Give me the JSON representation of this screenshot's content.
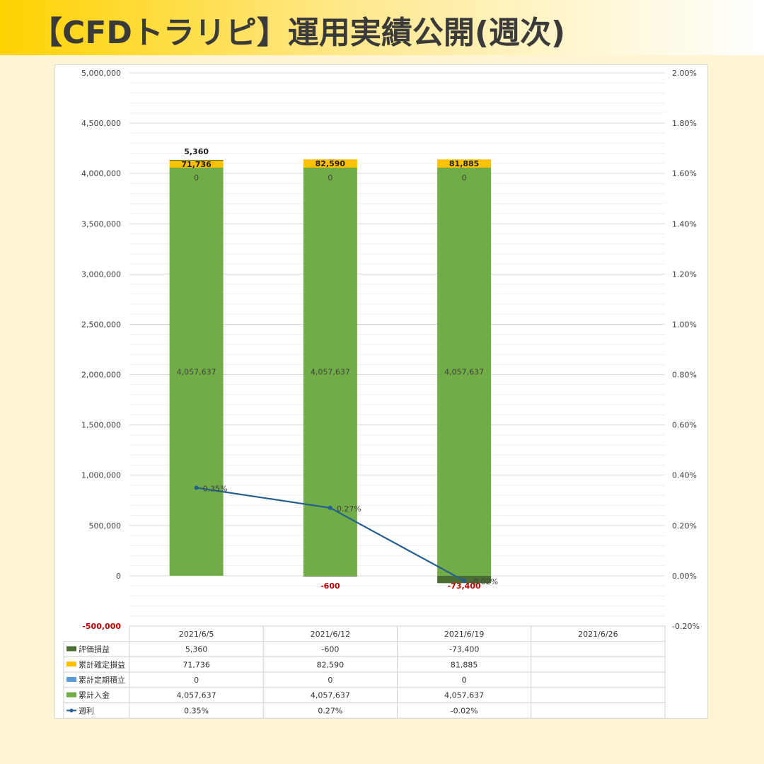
{
  "header": {
    "title": "【CFDトラリピ】運用実績公開(週次)"
  },
  "colors": {
    "banner_start": "#ffd200",
    "page_bg": "#fff5d3",
    "hyouka": "#4a6d31",
    "kakutei": "#ffc000",
    "teiki": "#5b9bd5",
    "nyukin": "#70ad47",
    "shuuri": "#255e91",
    "negative_axis": "#c00000"
  },
  "chart_data": {
    "type": "bar",
    "stacked": true,
    "categories": [
      "2021/6/5",
      "2021/6/12",
      "2021/6/19",
      "2021/6/26"
    ],
    "y_left": {
      "min": -500000,
      "max": 5000000,
      "major_step": 500000,
      "tick_labels": [
        "-500,000",
        "0",
        "500,000",
        "1,000,000",
        "1,500,000",
        "2,000,000",
        "2,500,000",
        "3,000,000",
        "3,500,000",
        "4,000,000",
        "4,500,000",
        "5,000,000"
      ]
    },
    "y_right": {
      "min": -0.2,
      "max": 2.0,
      "major_step": 0.2,
      "tick_labels": [
        "-0.20%",
        "0.00%",
        "0.20%",
        "0.40%",
        "0.60%",
        "0.80%",
        "1.00%",
        "1.20%",
        "1.40%",
        "1.60%",
        "1.80%",
        "2.00%"
      ]
    },
    "series": [
      {
        "key": "nyukin",
        "name": "累計入金",
        "type": "bar",
        "axis": "left",
        "values": [
          4057637,
          4057637,
          4057637,
          null
        ],
        "labels": [
          "4,057,637",
          "4,057,637",
          "4,057,637",
          ""
        ]
      },
      {
        "key": "teiki",
        "name": "累計定期積立",
        "type": "bar",
        "axis": "left",
        "values": [
          0,
          0,
          0,
          null
        ],
        "labels": [
          "0",
          "0",
          "0",
          ""
        ]
      },
      {
        "key": "kakutei",
        "name": "累計確定損益",
        "type": "bar",
        "axis": "left",
        "values": [
          71736,
          82590,
          81885,
          null
        ],
        "labels": [
          "71,736",
          "82,590",
          "81,885",
          ""
        ]
      },
      {
        "key": "hyouka",
        "name": "評価損益",
        "type": "bar",
        "axis": "left",
        "values": [
          5360,
          -600,
          -73400,
          null
        ],
        "labels": [
          "5,360",
          "-600",
          "-73,400",
          ""
        ]
      },
      {
        "key": "shuuri",
        "name": "週利",
        "type": "line",
        "axis": "right",
        "values": [
          0.35,
          0.27,
          -0.02,
          null
        ],
        "labels": [
          "0.35%",
          "0.27%",
          "-0.02%",
          ""
        ]
      }
    ],
    "table_rows_order": [
      "hyouka",
      "kakutei",
      "teiki",
      "nyukin",
      "shuuri"
    ],
    "grid": true,
    "legend": "data-table"
  }
}
